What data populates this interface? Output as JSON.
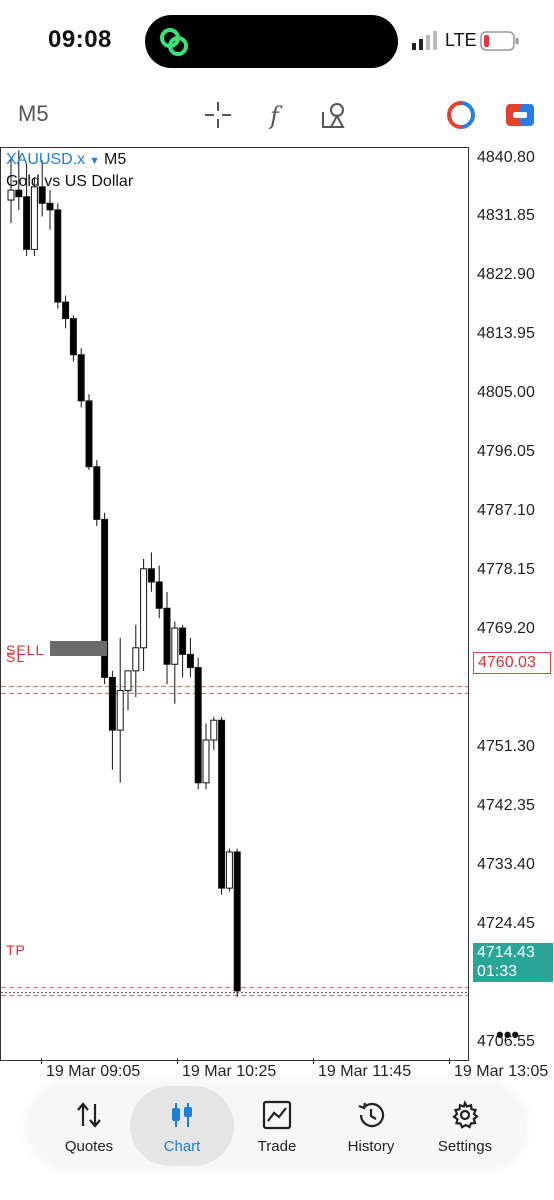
{
  "status_bar": {
    "time": "09:08",
    "network": "LTE"
  },
  "toolbar": {
    "timeframe": "M5",
    "icons": [
      "crosshair-icon",
      "indicator-f-icon",
      "objects-icon",
      "account-icon",
      "trade-toggle-icon"
    ]
  },
  "chart": {
    "symbol": "XAUUSD.x",
    "timeframe": "M5",
    "description": "Gold vs US Dollar",
    "price_ticks": [
      "4840.80",
      "4831.85",
      "4822.90",
      "4813.95",
      "4805.00",
      "4796.05",
      "4787.10",
      "4778.15",
      "4769.20",
      "4760.03",
      "4751.30",
      "4742.35",
      "4733.40",
      "4724.45",
      "4714.43",
      "4706.55"
    ],
    "sell_label": "SELL",
    "sl_label": "SL",
    "tp_label": "TP",
    "sl_price": "4760.03",
    "current_price": "4714.43",
    "countdown": "01:33",
    "time_ticks": [
      "19 Mar 09:05",
      "19 Mar 10:25",
      "19 Mar 11:45",
      "19 Mar 13:05"
    ],
    "colors": {
      "line": "#d33a3a",
      "current": "#2aa597",
      "symbol": "#1e7fd6"
    }
  },
  "chart_data": {
    "type": "candlestick",
    "symbol": "XAUUSD.x",
    "title": "Gold vs US Dollar",
    "ylim": [
      4703.6,
      4842.4
    ],
    "candles": [
      {
        "o": 4834.5,
        "h": 4841.0,
        "l": 4831.0,
        "c": 4836.0
      },
      {
        "o": 4836.0,
        "h": 4842.0,
        "l": 4833.0,
        "c": 4835.0
      },
      {
        "o": 4835.0,
        "h": 4840.0,
        "l": 4826.0,
        "c": 4827.0
      },
      {
        "o": 4827.0,
        "h": 4838.0,
        "l": 4826.0,
        "c": 4836.5
      },
      {
        "o": 4836.5,
        "h": 4840.5,
        "l": 4832.0,
        "c": 4834.0
      },
      {
        "o": 4834.0,
        "h": 4836.0,
        "l": 4830.0,
        "c": 4833.0
      },
      {
        "o": 4833.0,
        "h": 4834.0,
        "l": 4818.0,
        "c": 4819.0
      },
      {
        "o": 4819.0,
        "h": 4820.0,
        "l": 4815.0,
        "c": 4816.5
      },
      {
        "o": 4816.5,
        "h": 4817.0,
        "l": 4810.0,
        "c": 4811.0
      },
      {
        "o": 4811.0,
        "h": 4812.0,
        "l": 4803.0,
        "c": 4804.0
      },
      {
        "o": 4804.0,
        "h": 4805.0,
        "l": 4793.5,
        "c": 4794.0
      },
      {
        "o": 4794.0,
        "h": 4795.0,
        "l": 4785.0,
        "c": 4786.0
      },
      {
        "o": 4786.0,
        "h": 4787.0,
        "l": 4761.0,
        "c": 4762.0
      },
      {
        "o": 4762.0,
        "h": 4763.0,
        "l": 4748.0,
        "c": 4754.0
      },
      {
        "o": 4754.0,
        "h": 4768.0,
        "l": 4746.0,
        "c": 4760.0
      },
      {
        "o": 4760.0,
        "h": 4763.0,
        "l": 4757.0,
        "c": 4763.0
      },
      {
        "o": 4763.0,
        "h": 4770.0,
        "l": 4759.0,
        "c": 4766.5
      },
      {
        "o": 4766.5,
        "h": 4780.0,
        "l": 4763.0,
        "c": 4778.5
      },
      {
        "o": 4778.5,
        "h": 4781.0,
        "l": 4775.0,
        "c": 4776.5
      },
      {
        "o": 4776.5,
        "h": 4779.0,
        "l": 4771.0,
        "c": 4772.5
      },
      {
        "o": 4772.5,
        "h": 4775.0,
        "l": 4761.0,
        "c": 4764.0
      },
      {
        "o": 4764.0,
        "h": 4770.5,
        "l": 4758.0,
        "c": 4769.5
      },
      {
        "o": 4769.5,
        "h": 4770.0,
        "l": 4762.0,
        "c": 4765.5
      },
      {
        "o": 4765.5,
        "h": 4768.0,
        "l": 4762.0,
        "c": 4763.5
      },
      {
        "o": 4763.5,
        "h": 4765.0,
        "l": 4745.0,
        "c": 4746.0
      },
      {
        "o": 4746.0,
        "h": 4755.0,
        "l": 4745.0,
        "c": 4752.5
      },
      {
        "o": 4752.5,
        "h": 4756.0,
        "l": 4751.0,
        "c": 4755.5
      },
      {
        "o": 4755.5,
        "h": 4756.0,
        "l": 4729.0,
        "c": 4730.0
      },
      {
        "o": 4730.0,
        "h": 4736.0,
        "l": 4729.5,
        "c": 4735.5
      },
      {
        "o": 4735.5,
        "h": 4736.0,
        "l": 4713.5,
        "c": 4714.4
      }
    ],
    "lines": {
      "sell": 4760.6,
      "sl": 4760.03,
      "tp": 4714.9
    }
  },
  "nav": {
    "items": [
      {
        "label": "Quotes",
        "icon": "quotes-arrows-icon"
      },
      {
        "label": "Chart",
        "icon": "candlestick-icon"
      },
      {
        "label": "Trade",
        "icon": "trade-chart-icon"
      },
      {
        "label": "History",
        "icon": "history-clock-icon"
      },
      {
        "label": "Settings",
        "icon": "settings-gear-icon"
      }
    ],
    "active": "Chart"
  }
}
